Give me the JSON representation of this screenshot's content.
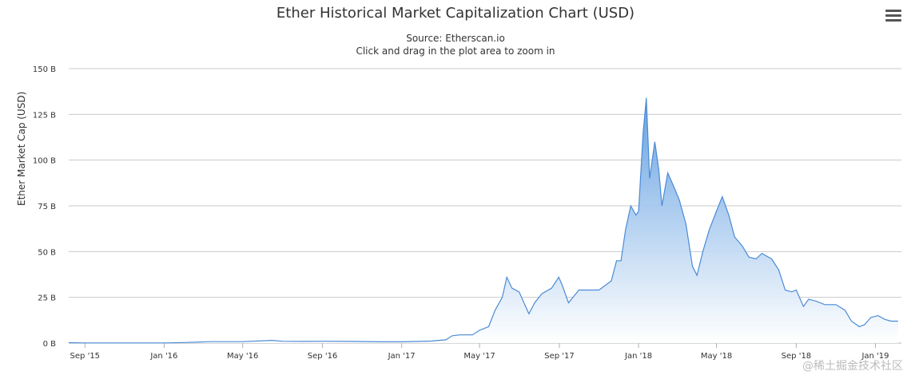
{
  "header": {
    "title": "Ether Historical Market Capitalization Chart (USD)",
    "source": "Source: Etherscan.io",
    "hint": "Click and drag in the plot area to zoom in"
  },
  "menu": {
    "icon": "hamburger-menu-icon"
  },
  "watermark": "@稀土掘金技术社区",
  "colors": {
    "line": "#4a8bd6",
    "fill_top": "#5b9be0",
    "fill_bottom": "#ffffff",
    "grid": "#c8c8c8"
  },
  "chart_data": {
    "type": "area",
    "title": "Ether Historical Market Capitalization Chart (USD)",
    "ylabel": "Ether Market Cap (USD)",
    "xlabel": "",
    "ylim": [
      0,
      150
    ],
    "yticks": [
      "0 B",
      "25 B",
      "50 B",
      "75 B",
      "100 B",
      "125 B",
      "150 B"
    ],
    "xlim": [
      "2015-08-07",
      "2019-02-10"
    ],
    "xticks": [
      {
        "date": "2015-09-01",
        "label": "Sep '15"
      },
      {
        "date": "2016-01-01",
        "label": "Jan '16"
      },
      {
        "date": "2016-05-01",
        "label": "May '16"
      },
      {
        "date": "2016-09-01",
        "label": "Sep '16"
      },
      {
        "date": "2017-01-01",
        "label": "Jan '17"
      },
      {
        "date": "2017-05-01",
        "label": "May '17"
      },
      {
        "date": "2017-09-01",
        "label": "Sep '17"
      },
      {
        "date": "2018-01-01",
        "label": "Jan '18"
      },
      {
        "date": "2018-05-01",
        "label": "May '18"
      },
      {
        "date": "2018-09-01",
        "label": "Sep '18"
      },
      {
        "date": "2019-01-01",
        "label": "Jan '19"
      }
    ],
    "grid": true,
    "series": [
      {
        "x": [
          "2015-08-07",
          "2015-09-01",
          "2015-12-01",
          "2016-01-01",
          "2016-02-01",
          "2016-03-15",
          "2016-05-01",
          "2016-06-15",
          "2016-07-01",
          "2016-08-01",
          "2016-09-01",
          "2016-10-15",
          "2016-12-01",
          "2017-01-01",
          "2017-02-15",
          "2017-03-10",
          "2017-03-20",
          "2017-04-01",
          "2017-04-20",
          "2017-05-01",
          "2017-05-15",
          "2017-05-25",
          "2017-06-05",
          "2017-06-12",
          "2017-06-20",
          "2017-07-01",
          "2017-07-16",
          "2017-07-25",
          "2017-08-05",
          "2017-08-20",
          "2017-08-31",
          "2017-09-05",
          "2017-09-15",
          "2017-10-01",
          "2017-10-20",
          "2017-11-01",
          "2017-11-20",
          "2017-11-28",
          "2017-12-05",
          "2017-12-12",
          "2017-12-20",
          "2017-12-28",
          "2018-01-01",
          "2018-01-08",
          "2018-01-13",
          "2018-01-18",
          "2018-01-26",
          "2018-02-01",
          "2018-02-06",
          "2018-02-15",
          "2018-02-25",
          "2018-03-05",
          "2018-03-15",
          "2018-03-25",
          "2018-04-01",
          "2018-04-10",
          "2018-04-20",
          "2018-05-01",
          "2018-05-10",
          "2018-05-20",
          "2018-05-29",
          "2018-06-10",
          "2018-06-20",
          "2018-07-01",
          "2018-07-10",
          "2018-07-25",
          "2018-08-05",
          "2018-08-15",
          "2018-08-25",
          "2018-09-01",
          "2018-09-12",
          "2018-09-20",
          "2018-10-01",
          "2018-10-15",
          "2018-11-01",
          "2018-11-15",
          "2018-11-25",
          "2018-12-07",
          "2018-12-15",
          "2018-12-25",
          "2019-01-05",
          "2019-01-15",
          "2019-01-25",
          "2019-02-05"
        ],
        "values": [
          0.2,
          0.1,
          0.1,
          0.1,
          0.3,
          0.8,
          0.8,
          1.5,
          1.0,
          0.9,
          1.0,
          0.9,
          0.7,
          0.7,
          1.1,
          1.8,
          4.0,
          4.5,
          4.5,
          7.0,
          9.0,
          18.0,
          25.0,
          36.0,
          30.0,
          28.0,
          16.0,
          22.0,
          27.0,
          30.0,
          36.0,
          32.0,
          22.0,
          29.0,
          29.0,
          29.0,
          34.0,
          45.0,
          45.0,
          62.0,
          75.0,
          70.0,
          72.0,
          115.0,
          134.0,
          90.0,
          110.0,
          95.0,
          75.0,
          93.0,
          85.0,
          78.0,
          65.0,
          42.0,
          37.0,
          50.0,
          62.0,
          72.0,
          80.0,
          70.0,
          58.0,
          53.0,
          47.0,
          46.0,
          49.0,
          46.0,
          40.0,
          29.0,
          28.0,
          29.0,
          20.0,
          24.0,
          23.0,
          21.0,
          21.0,
          18.0,
          12.0,
          9.0,
          10.0,
          14.0,
          15.0,
          13.0,
          12.0,
          12.0
        ]
      }
    ]
  }
}
